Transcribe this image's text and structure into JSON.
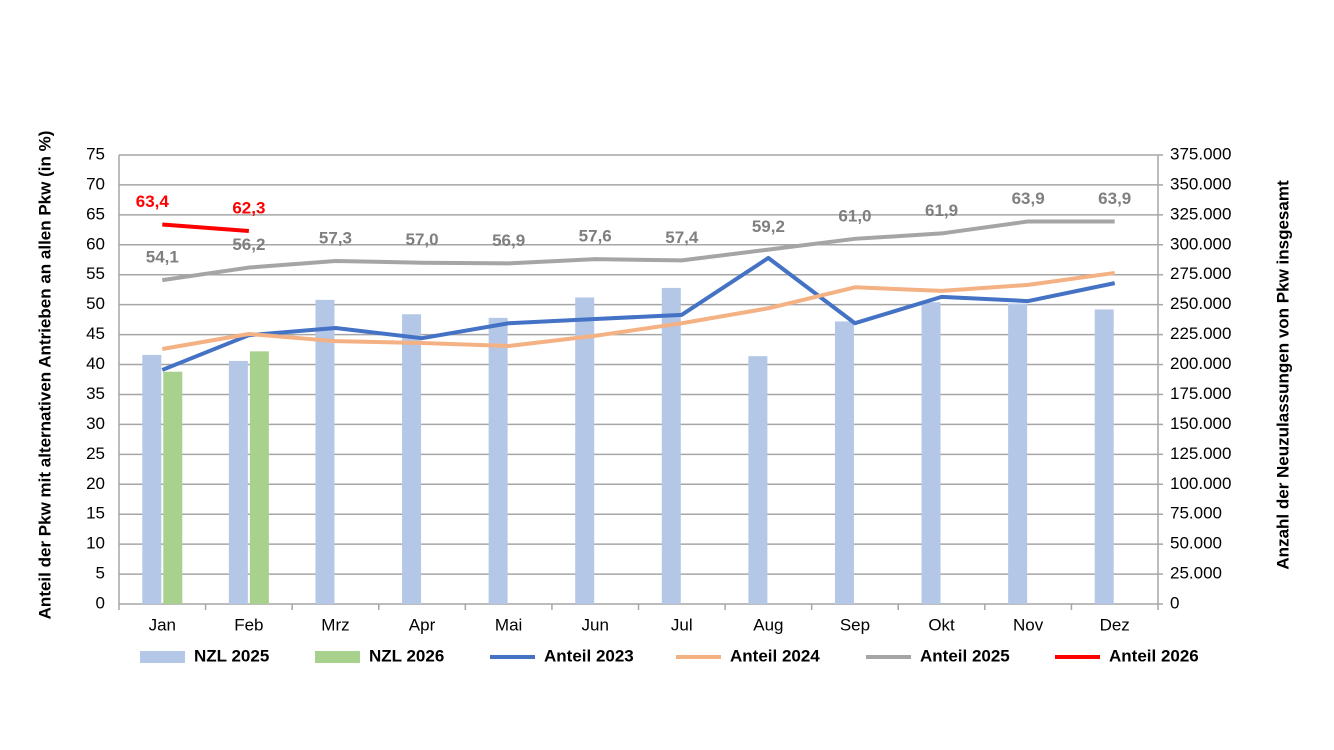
{
  "chart_data": {
    "type": "bar-line",
    "y_label": "Anteil der Pkw mit alternativen Antrieben an allen Pkw (in %)",
    "y2_label": "Anzahl der Neuzulassungen von Pkw insgesamt",
    "categories": [
      "Jan",
      "Feb",
      "Mrz",
      "Apr",
      "Mai",
      "Jun",
      "Jul",
      "Aug",
      "Sep",
      "Okt",
      "Nov",
      "Dez"
    ],
    "ylim": [
      0,
      75
    ],
    "yticks": [
      0,
      5,
      10,
      15,
      20,
      25,
      30,
      35,
      40,
      45,
      50,
      55,
      60,
      65,
      70,
      75
    ],
    "y2lim": [
      0,
      375000
    ],
    "y2ticks": [
      0,
      {
        "value": 25000,
        "label": "25.000"
      },
      {
        "value": 50000,
        "label": "50.000"
      },
      {
        "value": 75000,
        "label": "75.000"
      },
      {
        "value": 100000,
        "label": "100.000"
      },
      {
        "value": 125000,
        "label": "125.000"
      },
      {
        "value": 150000,
        "label": "150.000"
      },
      {
        "value": 175000,
        "label": "175.000"
      },
      {
        "value": 200000,
        "label": "200.000"
      },
      {
        "value": 225000,
        "label": "225.000"
      },
      {
        "value": 250000,
        "label": "250.000"
      },
      {
        "value": 275000,
        "label": "275.000"
      },
      {
        "value": 300000,
        "label": "300.000"
      },
      {
        "value": 325000,
        "label": "325.000"
      },
      {
        "value": 350000,
        "label": "350.000"
      },
      {
        "value": 375000,
        "label": "375.000"
      }
    ],
    "grid": true,
    "legend": "bottom",
    "series": [
      {
        "name": "NZL 2025",
        "type": "bar",
        "axis": "y2",
        "color": "#b4c7e7",
        "values": [
          208000,
          203000,
          254000,
          242000,
          239000,
          256000,
          264000,
          207000,
          236000,
          252000,
          251000,
          246000
        ]
      },
      {
        "name": "NZL 2026",
        "type": "bar",
        "axis": "y2",
        "color": "#a9d18e",
        "values": [
          194000,
          211000,
          null,
          null,
          null,
          null,
          null,
          null,
          null,
          null,
          null,
          null
        ]
      },
      {
        "name": "Anteil 2023",
        "type": "line",
        "color": "#4472c4",
        "values": [
          39.1,
          44.9,
          46.1,
          44.4,
          46.9,
          47.6,
          48.3,
          57.8,
          46.9,
          51.3,
          50.6,
          53.6
        ]
      },
      {
        "name": "Anteil 2024",
        "type": "line",
        "color": "#f4b183",
        "values": [
          42.6,
          45.1,
          43.9,
          43.6,
          43.1,
          44.8,
          46.9,
          49.4,
          52.9,
          52.3,
          53.3,
          55.3
        ]
      },
      {
        "name": "Anteil 2025",
        "type": "line",
        "color": "#a5a5a5",
        "values": [
          54.1,
          56.2,
          57.3,
          57.0,
          56.9,
          57.6,
          57.4,
          59.2,
          61.0,
          61.9,
          63.9,
          63.9
        ],
        "value_labels": [
          "54,1",
          "56,2",
          "57,3",
          "57,0",
          "56,9",
          "57,6",
          "57,4",
          "59,2",
          "61,0",
          "61,9",
          "63,9",
          "63,9"
        ]
      },
      {
        "name": "Anteil 2026",
        "type": "line",
        "color": "#ff0000",
        "values": [
          63.4,
          62.3,
          null,
          null,
          null,
          null,
          null,
          null,
          null,
          null,
          null,
          null
        ],
        "value_labels": [
          "63,4",
          "62,3",
          null,
          null,
          null,
          null,
          null,
          null,
          null,
          null,
          null,
          null
        ]
      }
    ]
  }
}
